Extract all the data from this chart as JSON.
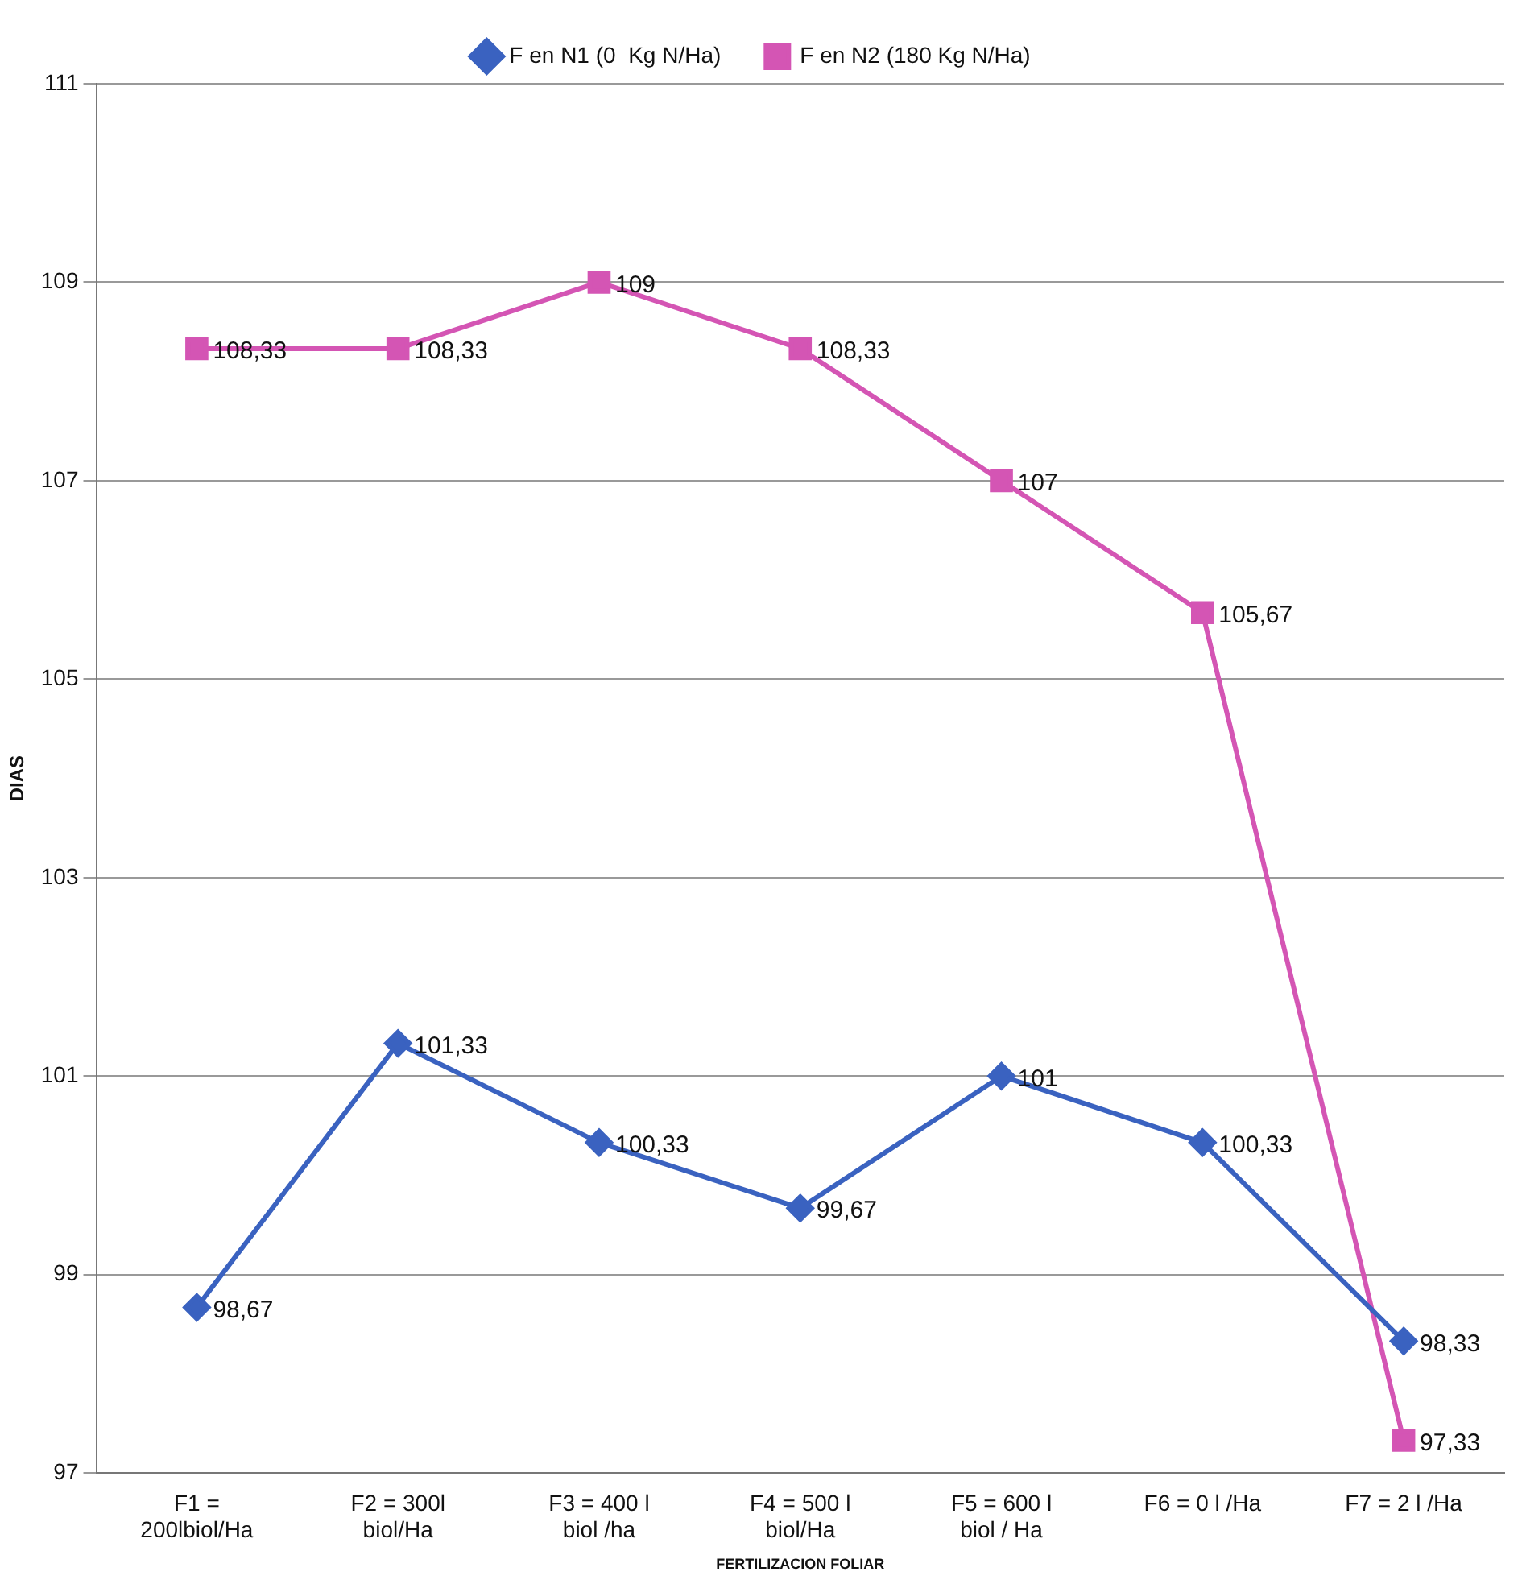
{
  "chart_data": {
    "type": "line",
    "xlabel": "FERTILIZACION FOLIAR",
    "ylabel": "DIAS",
    "categories": [
      "F1 = 200lbiol/Ha",
      "F2 = 300l biol/Ha",
      "F3 = 400 l biol /ha",
      "F4 = 500 l biol/Ha",
      "F5 = 600 l biol / Ha",
      "F6 = 0 l /Ha",
      "F7 = 2 l /Ha"
    ],
    "series": [
      {
        "name": "F en N1 (0  Kg N/Ha)",
        "color": "#3a62c0",
        "marker": "diamond",
        "values": [
          98.67,
          101.33,
          100.33,
          99.67,
          101,
          100.33,
          98.33
        ],
        "value_labels": [
          "98,67",
          "101,33",
          "100,33",
          "99,67",
          "101",
          "100,33",
          "98,33"
        ]
      },
      {
        "name": "F en N2 (180 Kg N/Ha)",
        "color": "#d455b4",
        "marker": "square",
        "values": [
          108.33,
          108.33,
          109,
          108.33,
          107,
          105.67,
          97.33
        ],
        "value_labels": [
          "108,33",
          "108,33",
          "109",
          "108,33",
          "107",
          "105,67",
          "97,33"
        ]
      }
    ],
    "ylim": [
      97,
      111
    ],
    "yticks": [
      97,
      99,
      101,
      103,
      105,
      107,
      109,
      111
    ],
    "grid": "y",
    "legend": "top",
    "line_style": "solid"
  }
}
